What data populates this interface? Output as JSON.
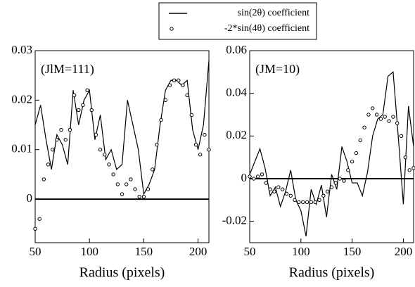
{
  "chart_data": [
    {
      "type": "line",
      "annotation": "(JlM=111)",
      "xlabel": "Radius (pixels)",
      "legend": "upper center",
      "xlim": [
        50,
        210
      ],
      "xticks": [
        50,
        100,
        150,
        200
      ],
      "ylim": [
        -0.0088,
        0.03
      ],
      "yticks": [
        0,
        0.01,
        0.02,
        0.03
      ],
      "series": [
        {
          "name": "sin(2θ) coefficient",
          "color": "#000000",
          "mark": "line",
          "x": [
            50,
            55,
            60,
            65,
            70,
            75,
            80,
            85,
            90,
            95,
            100,
            105,
            110,
            115,
            120,
            125,
            130,
            135,
            140,
            145,
            150,
            155,
            160,
            165,
            170,
            175,
            180,
            185,
            190,
            195,
            200,
            205,
            210
          ],
          "values": [
            0.015,
            0.019,
            0.012,
            0.006,
            0.013,
            0.011,
            0.007,
            0.022,
            0.015,
            0.02,
            0.022,
            0.012,
            0.017,
            0.008,
            0.01,
            0.006,
            0.007,
            0.02,
            0.015,
            0.01,
            0.001,
            0.003,
            0.006,
            0.015,
            0.022,
            0.024,
            0.024,
            0.023,
            0.024,
            0.014,
            0.01,
            0.015,
            0.028
          ]
        },
        {
          "name": "-2*sin(4θ) coefficient",
          "color": "#000000",
          "mark": "circle",
          "x": [
            50,
            54,
            58,
            62,
            66,
            70,
            74,
            78,
            82,
            86,
            90,
            94,
            98,
            102,
            106,
            110,
            114,
            118,
            122,
            126,
            130,
            134,
            138,
            142,
            146,
            150,
            154,
            158,
            162,
            166,
            170,
            174,
            178,
            182,
            186,
            190,
            194,
            198,
            202,
            206,
            210
          ],
          "values": [
            -0.006,
            -0.004,
            0.004,
            0.007,
            0.01,
            0.012,
            0.014,
            0.012,
            0.014,
            0.021,
            0.018,
            0.019,
            0.022,
            0.018,
            0.013,
            0.01,
            0.009,
            0.007,
            0.005,
            0.003,
            0.001,
            0.003,
            0.004,
            0.002,
            0.0005,
            0.0005,
            0.002,
            0.006,
            0.011,
            0.016,
            0.02,
            0.023,
            0.024,
            0.024,
            0.023,
            0.021,
            0.017,
            0.011,
            0.009,
            0.013,
            0.01
          ]
        }
      ]
    },
    {
      "type": "line",
      "annotation": "(JM=10)",
      "xlabel": "Radius (pixels)",
      "xlim": [
        50,
        210
      ],
      "xticks": [
        50,
        100,
        150,
        200
      ],
      "ylim": [
        -0.03,
        0.06
      ],
      "yticks": [
        -0.02,
        0,
        0.02,
        0.04,
        0.06
      ],
      "series": [
        {
          "color": "#000000",
          "mark": "line",
          "x": [
            50,
            55,
            60,
            65,
            70,
            75,
            80,
            85,
            90,
            95,
            100,
            105,
            110,
            115,
            120,
            125,
            130,
            135,
            140,
            145,
            150,
            155,
            160,
            165,
            170,
            175,
            180,
            185,
            190,
            195,
            200,
            205,
            210
          ],
          "values": [
            0.002,
            0.008,
            0.014,
            0.005,
            -0.008,
            -0.004,
            -0.013,
            -0.006,
            0.004,
            -0.01,
            -0.015,
            -0.027,
            -0.005,
            -0.012,
            -0.003,
            -0.018,
            0.002,
            -0.005,
            0.015,
            0.008,
            -0.002,
            -0.002,
            -0.008,
            0.003,
            0.02,
            0.028,
            0.03,
            0.048,
            0.05,
            0.02,
            -0.012,
            0.034,
            0.015
          ]
        },
        {
          "color": "#000000",
          "mark": "circle",
          "x": [
            50,
            54,
            58,
            62,
            66,
            70,
            74,
            78,
            82,
            86,
            90,
            94,
            98,
            102,
            106,
            110,
            114,
            118,
            122,
            126,
            130,
            134,
            138,
            142,
            146,
            150,
            154,
            158,
            162,
            166,
            170,
            174,
            178,
            182,
            186,
            190,
            194,
            198,
            202,
            206,
            210
          ],
          "values": [
            0.001,
            0,
            0.001,
            0.002,
            -0.002,
            -0.005,
            -0.006,
            -0.004,
            -0.005,
            -0.007,
            -0.008,
            -0.01,
            -0.011,
            -0.011,
            -0.011,
            -0.011,
            -0.011,
            -0.01,
            -0.008,
            -0.006,
            -0.004,
            -0.002,
            0,
            -0.001,
            0.004,
            0.008,
            0.012,
            0.018,
            0.024,
            0.03,
            0.033,
            0.03,
            0.028,
            0.029,
            0.027,
            0.029,
            0.026,
            0.02,
            0.01,
            0.004,
            0.005
          ]
        }
      ]
    }
  ]
}
